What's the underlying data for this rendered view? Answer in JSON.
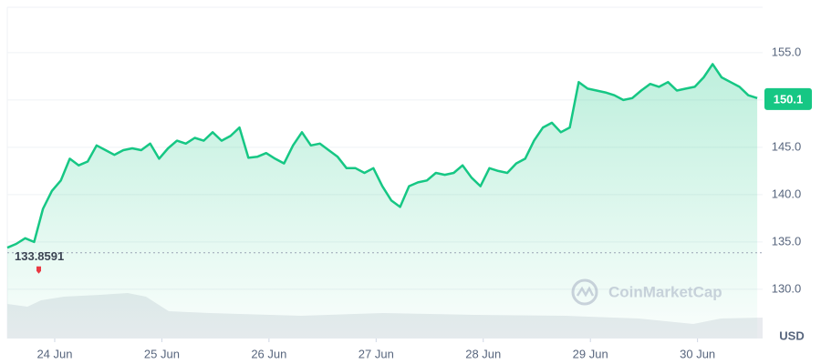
{
  "chart_data": {
    "type": "line",
    "color": "#16c784",
    "values": [
      134.4,
      134.8,
      135.4,
      135.0,
      138.5,
      140.4,
      141.5,
      143.8,
      143.1,
      143.5,
      145.2,
      144.7,
      144.2,
      144.7,
      144.9,
      144.7,
      145.4,
      143.8,
      144.9,
      145.7,
      145.4,
      146.0,
      145.7,
      146.6,
      145.7,
      146.2,
      147.1,
      143.9,
      144.0,
      144.4,
      143.8,
      143.3,
      145.2,
      146.6,
      145.2,
      145.4,
      144.7,
      144.0,
      142.8,
      142.8,
      142.3,
      142.8,
      140.9,
      139.4,
      138.7,
      140.9,
      141.3,
      141.5,
      142.3,
      142.1,
      142.3,
      143.1,
      141.8,
      140.9,
      142.8,
      142.5,
      142.3,
      143.3,
      143.8,
      145.7,
      147.1,
      147.6,
      146.6,
      147.1,
      151.9,
      151.2,
      151.0,
      150.8,
      150.5,
      150.0,
      150.2,
      151.0,
      151.7,
      151.4,
      151.9,
      151.0,
      151.2,
      151.4,
      152.4,
      153.8,
      152.4,
      151.9,
      151.4,
      150.5,
      150.2
    ],
    "xlim": [
      0,
      84.6
    ],
    "xticks": [
      {
        "value": 5.31,
        "label": "24 Jun"
      },
      {
        "value": 17.31,
        "label": "25 Jun"
      },
      {
        "value": 29.31,
        "label": "26 Jun"
      },
      {
        "value": 41.31,
        "label": "27 Jun"
      },
      {
        "value": 53.31,
        "label": "28 Jun"
      },
      {
        "value": 65.31,
        "label": "29 Jun"
      },
      {
        "value": 77.31,
        "label": "30 Jun"
      }
    ],
    "ylim": [
      124.8,
      159.8
    ],
    "yticks": [
      {
        "value": 130,
        "label": "130.0"
      },
      {
        "value": 135,
        "label": "135.0"
      },
      {
        "value": 140,
        "label": "140.0"
      },
      {
        "value": 145,
        "label": "145.0"
      },
      {
        "value": 150,
        "label": "150.0"
      },
      {
        "value": 155,
        "label": "155.0"
      }
    ],
    "grid": true,
    "baseline": 133.8591,
    "current_price": 150.1,
    "currency": "USD",
    "watermark": "CoinMarketCap"
  }
}
